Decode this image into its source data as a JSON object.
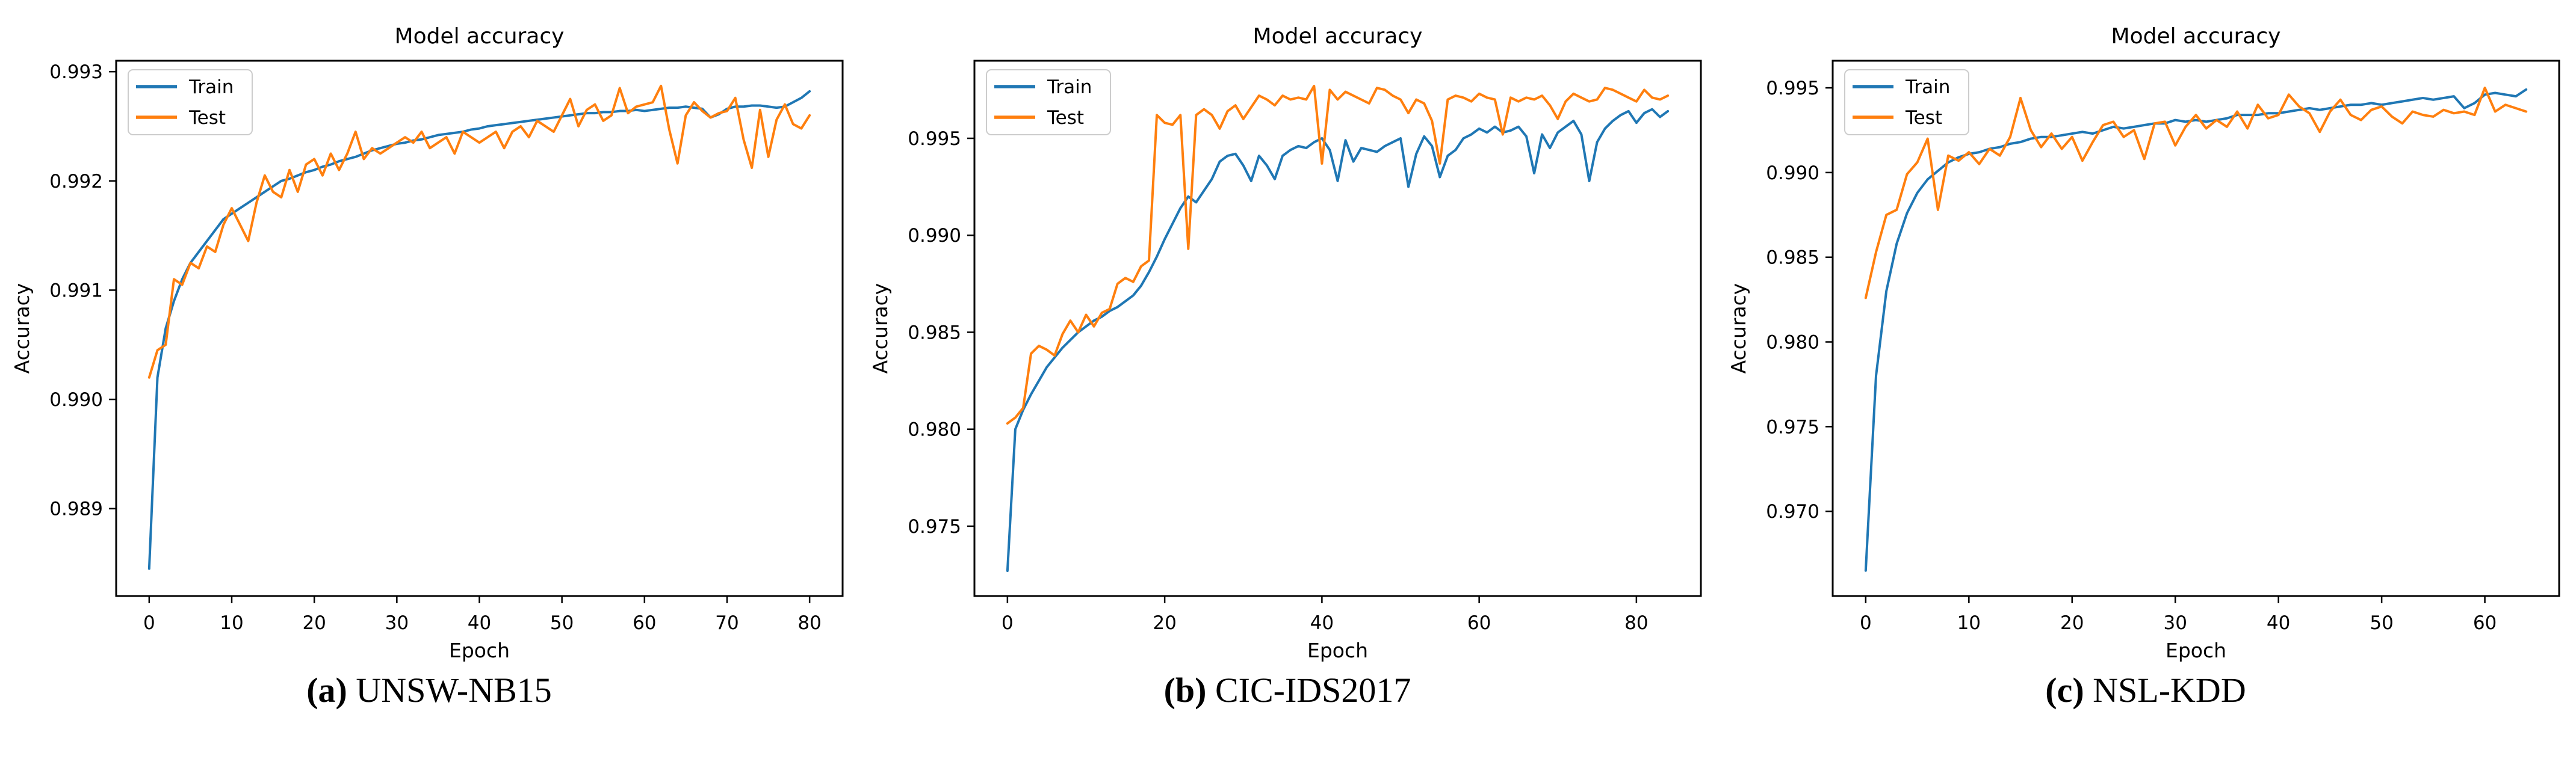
{
  "figure": {
    "background": "#ffffff",
    "panel_count": 3
  },
  "chart_data": [
    {
      "type": "line",
      "title": "Model accuracy",
      "xlabel": "Epoch",
      "ylabel": "Accuracy",
      "caption": {
        "label": "(a)",
        "text": "UNSW-NB15"
      },
      "legend": {
        "position": "upper-left",
        "entries": [
          "Train",
          "Test"
        ]
      },
      "axes": {
        "xlim": [
          -4,
          84
        ],
        "ylim": [
          0.9882,
          0.9931
        ],
        "xticks": [
          0,
          10,
          20,
          30,
          40,
          50,
          60,
          70,
          80
        ],
        "ytick_labels": [
          "0.989",
          "0.990",
          "0.991",
          "0.992",
          "0.993"
        ],
        "grid": false
      },
      "series": [
        {
          "name": "Train",
          "color": "#1f77b4",
          "x_start": 0,
          "x_step": 1,
          "values": [
            0.98845,
            0.9902,
            0.99065,
            0.9909,
            0.9911,
            0.99125,
            0.99135,
            0.99145,
            0.99155,
            0.99165,
            0.9917,
            0.99175,
            0.9918,
            0.99185,
            0.9919,
            0.99195,
            0.992,
            0.99202,
            0.99205,
            0.99208,
            0.9921,
            0.99213,
            0.99215,
            0.99218,
            0.9922,
            0.99222,
            0.99225,
            0.99228,
            0.9923,
            0.99232,
            0.99234,
            0.99235,
            0.99237,
            0.99238,
            0.9924,
            0.99242,
            0.99243,
            0.99244,
            0.99245,
            0.99247,
            0.99248,
            0.9925,
            0.99251,
            0.99252,
            0.99253,
            0.99254,
            0.99255,
            0.99256,
            0.99257,
            0.99258,
            0.99259,
            0.9926,
            0.99261,
            0.99262,
            0.99262,
            0.99263,
            0.99263,
            0.99264,
            0.99264,
            0.99265,
            0.99264,
            0.99265,
            0.99266,
            0.99267,
            0.99267,
            0.99268,
            0.99267,
            0.99266,
            0.99258,
            0.99261,
            0.99266,
            0.99268,
            0.99268,
            0.99269,
            0.99269,
            0.99268,
            0.99267,
            0.99268,
            0.99272,
            0.99276,
            0.99282
          ]
        },
        {
          "name": "Test",
          "color": "#ff7f0e",
          "x_start": 0,
          "x_step": 1,
          "values": [
            0.9902,
            0.99045,
            0.9905,
            0.9911,
            0.99105,
            0.99125,
            0.9912,
            0.9914,
            0.99135,
            0.9916,
            0.99175,
            0.9916,
            0.99145,
            0.9918,
            0.99205,
            0.9919,
            0.99185,
            0.9921,
            0.9919,
            0.99215,
            0.9922,
            0.99205,
            0.99225,
            0.9921,
            0.99225,
            0.99245,
            0.9922,
            0.9923,
            0.99225,
            0.9923,
            0.99235,
            0.9924,
            0.99235,
            0.99245,
            0.9923,
            0.99235,
            0.9924,
            0.99225,
            0.99245,
            0.9924,
            0.99235,
            0.9924,
            0.99245,
            0.9923,
            0.99245,
            0.9925,
            0.9924,
            0.99255,
            0.9925,
            0.99245,
            0.9926,
            0.99275,
            0.9925,
            0.99265,
            0.9927,
            0.99255,
            0.9926,
            0.99285,
            0.99262,
            0.99268,
            0.9927,
            0.99272,
            0.99287,
            0.99247,
            0.99216,
            0.9926,
            0.99272,
            0.99264,
            0.99258,
            0.99262,
            0.99264,
            0.99276,
            0.99238,
            0.99212,
            0.99265,
            0.99222,
            0.99256,
            0.9927,
            0.99252,
            0.99248,
            0.9926
          ]
        }
      ]
    },
    {
      "type": "line",
      "title": "Model accuracy",
      "xlabel": "Epoch",
      "ylabel": "Accuracy",
      "caption": {
        "label": "(b)",
        "text": "CIC-IDS2017"
      },
      "legend": {
        "position": "upper-left",
        "entries": [
          "Train",
          "Test"
        ]
      },
      "axes": {
        "xlim": [
          -4.2,
          88.2
        ],
        "ylim": [
          0.9714,
          0.999
        ],
        "xticks": [
          0,
          20,
          40,
          60,
          80
        ],
        "ytick_labels": [
          "0.975",
          "0.980",
          "0.985",
          "0.990",
          "0.995"
        ],
        "grid": false
      },
      "series": [
        {
          "name": "Train",
          "color": "#1f77b4",
          "x_start": 0,
          "x_step": 1,
          "values": [
            0.9727,
            0.98,
            0.981,
            0.9818,
            0.9825,
            0.9832,
            0.9837,
            0.9842,
            0.9846,
            0.985,
            0.9853,
            0.9856,
            0.9858,
            0.9861,
            0.9863,
            0.9866,
            0.9869,
            0.9874,
            0.9881,
            0.9889,
            0.9898,
            0.9906,
            0.9914,
            0.992,
            0.9917,
            0.9923,
            0.9929,
            0.9938,
            0.9941,
            0.9942,
            0.9936,
            0.9928,
            0.9941,
            0.9936,
            0.9929,
            0.9941,
            0.9944,
            0.9946,
            0.9945,
            0.9948,
            0.995,
            0.9944,
            0.9928,
            0.9949,
            0.9938,
            0.9945,
            0.9944,
            0.9943,
            0.9946,
            0.9948,
            0.995,
            0.9925,
            0.9942,
            0.9951,
            0.9946,
            0.993,
            0.9941,
            0.9944,
            0.995,
            0.9952,
            0.9955,
            0.9953,
            0.9956,
            0.9953,
            0.9954,
            0.9956,
            0.9951,
            0.9932,
            0.9952,
            0.9945,
            0.9953,
            0.9956,
            0.9959,
            0.9952,
            0.9928,
            0.9948,
            0.9955,
            0.9959,
            0.9962,
            0.9964,
            0.9958,
            0.9963,
            0.9965,
            0.9961,
            0.9964
          ]
        },
        {
          "name": "Test",
          "color": "#ff7f0e",
          "x_start": 0,
          "x_step": 1,
          "values": [
            0.9803,
            0.9806,
            0.9811,
            0.9839,
            0.9843,
            0.9841,
            0.9838,
            0.9849,
            0.9856,
            0.985,
            0.9859,
            0.9853,
            0.986,
            0.9862,
            0.9875,
            0.9878,
            0.9876,
            0.9884,
            0.9887,
            0.9962,
            0.9958,
            0.9957,
            0.9962,
            0.9893,
            0.9962,
            0.9965,
            0.9962,
            0.9955,
            0.9964,
            0.9967,
            0.996,
            0.9966,
            0.9972,
            0.997,
            0.9967,
            0.9972,
            0.997,
            0.9971,
            0.997,
            0.9977,
            0.9937,
            0.9975,
            0.997,
            0.9974,
            0.9972,
            0.997,
            0.9968,
            0.9976,
            0.9975,
            0.9972,
            0.997,
            0.9963,
            0.997,
            0.9968,
            0.9959,
            0.9937,
            0.997,
            0.9972,
            0.9971,
            0.9969,
            0.9973,
            0.9971,
            0.997,
            0.9952,
            0.9971,
            0.9969,
            0.9971,
            0.997,
            0.9972,
            0.9967,
            0.996,
            0.9969,
            0.9973,
            0.9971,
            0.9969,
            0.997,
            0.9976,
            0.9975,
            0.9973,
            0.9971,
            0.9969,
            0.9975,
            0.9971,
            0.997,
            0.9972
          ]
        }
      ]
    },
    {
      "type": "line",
      "title": "Model accuracy",
      "xlabel": "Epoch",
      "ylabel": "Accuracy",
      "caption": {
        "label": "(c)",
        "text": "NSL-KDD"
      },
      "legend": {
        "position": "upper-left",
        "entries": [
          "Train",
          "Test"
        ]
      },
      "axes": {
        "xlim": [
          -3.2,
          67.2
        ],
        "ylim": [
          0.965,
          0.9966
        ],
        "xticks": [
          0,
          10,
          20,
          30,
          40,
          50,
          60
        ],
        "ytick_labels": [
          "0.970",
          "0.975",
          "0.980",
          "0.985",
          "0.990",
          "0.995"
        ],
        "grid": false
      },
      "series": [
        {
          "name": "Train",
          "color": "#1f77b4",
          "x_start": 0,
          "x_step": 1,
          "values": [
            0.9665,
            0.978,
            0.983,
            0.9858,
            0.9876,
            0.9888,
            0.9896,
            0.9901,
            0.9906,
            0.9909,
            0.9911,
            0.9912,
            0.9914,
            0.9915,
            0.9917,
            0.9918,
            0.992,
            0.9921,
            0.9921,
            0.9922,
            0.9923,
            0.9924,
            0.9923,
            0.9925,
            0.9927,
            0.9926,
            0.9927,
            0.9928,
            0.9929,
            0.9929,
            0.9931,
            0.993,
            0.9931,
            0.993,
            0.9931,
            0.9932,
            0.9934,
            0.9934,
            0.9934,
            0.9935,
            0.9935,
            0.9936,
            0.9937,
            0.9938,
            0.9937,
            0.9938,
            0.9939,
            0.994,
            0.994,
            0.9941,
            0.994,
            0.9941,
            0.9942,
            0.9943,
            0.9944,
            0.9943,
            0.9944,
            0.9945,
            0.9938,
            0.9941,
            0.9946,
            0.9947,
            0.9946,
            0.9945,
            0.9949
          ]
        },
        {
          "name": "Test",
          "color": "#ff7f0e",
          "x_start": 0,
          "x_step": 1,
          "values": [
            0.9826,
            0.9853,
            0.9875,
            0.9878,
            0.9899,
            0.9906,
            0.992,
            0.9878,
            0.991,
            0.9907,
            0.9912,
            0.9905,
            0.9914,
            0.991,
            0.9921,
            0.9944,
            0.9925,
            0.9915,
            0.9923,
            0.9914,
            0.9921,
            0.9907,
            0.9918,
            0.9928,
            0.993,
            0.9921,
            0.9925,
            0.9908,
            0.9929,
            0.993,
            0.9916,
            0.9927,
            0.9934,
            0.9926,
            0.9931,
            0.9927,
            0.9936,
            0.9926,
            0.994,
            0.9932,
            0.9934,
            0.9946,
            0.9939,
            0.9935,
            0.9924,
            0.9936,
            0.9943,
            0.9934,
            0.9931,
            0.9937,
            0.9939,
            0.9933,
            0.9929,
            0.9936,
            0.9934,
            0.9933,
            0.9937,
            0.9935,
            0.9936,
            0.9934,
            0.995,
            0.9936,
            0.994,
            0.9938,
            0.9936
          ]
        }
      ]
    }
  ]
}
